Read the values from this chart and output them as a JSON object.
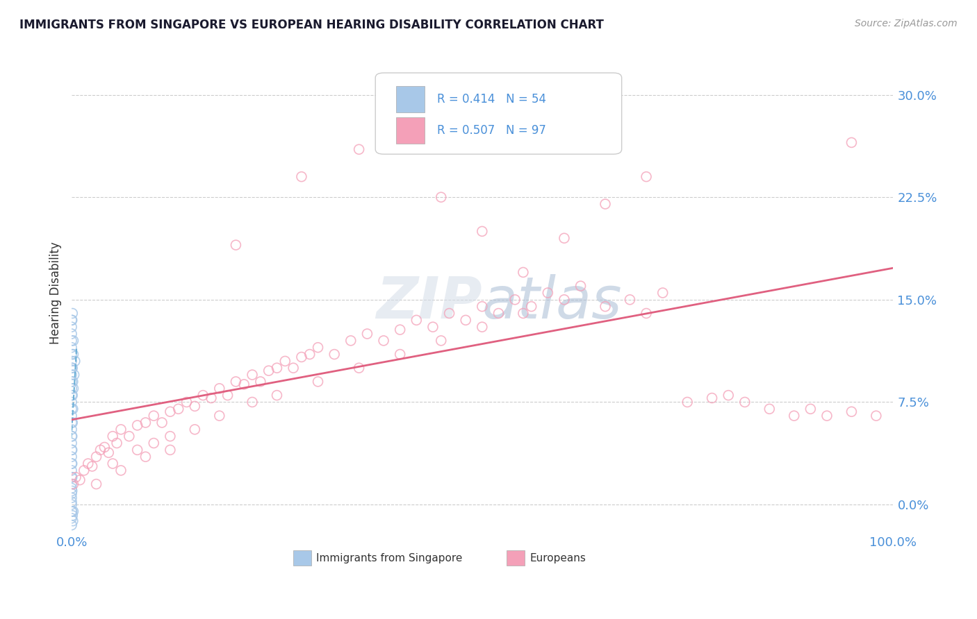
{
  "title": "IMMIGRANTS FROM SINGAPORE VS EUROPEAN HEARING DISABILITY CORRELATION CHART",
  "source": "Source: ZipAtlas.com",
  "ylabel": "Hearing Disability",
  "watermark": "ZIPatlas",
  "legend_blue_R": "0.414",
  "legend_blue_N": "54",
  "legend_pink_R": "0.507",
  "legend_pink_N": "97",
  "legend_label_blue": "Immigrants from Singapore",
  "legend_label_pink": "Europeans",
  "xlim": [
    0.0,
    100.0
  ],
  "ylim": [
    -2.0,
    33.0
  ],
  "yticks": [
    0.0,
    7.5,
    15.0,
    22.5,
    30.0
  ],
  "xticks": [
    0.0,
    100.0
  ],
  "blue_color": "#a8c8e8",
  "pink_color": "#f4a0b8",
  "title_color": "#1a1a2e",
  "axis_label_color": "#4a90d9",
  "blue_scatter": [
    [
      0.0,
      0.0
    ],
    [
      0.0,
      0.2
    ],
    [
      0.0,
      0.5
    ],
    [
      0.0,
      0.8
    ],
    [
      0.0,
      1.2
    ],
    [
      0.0,
      1.5
    ],
    [
      0.0,
      2.0
    ],
    [
      0.0,
      2.5
    ],
    [
      0.0,
      3.0
    ],
    [
      0.0,
      3.5
    ],
    [
      0.0,
      4.0
    ],
    [
      0.0,
      4.5
    ],
    [
      0.0,
      5.0
    ],
    [
      0.0,
      5.5
    ],
    [
      0.0,
      6.0
    ],
    [
      0.0,
      6.5
    ],
    [
      0.0,
      7.0
    ],
    [
      0.0,
      7.5
    ],
    [
      0.0,
      8.0
    ],
    [
      0.0,
      8.5
    ],
    [
      0.0,
      9.0
    ],
    [
      0.0,
      9.5
    ],
    [
      0.0,
      10.0
    ],
    [
      0.0,
      10.5
    ],
    [
      0.0,
      11.0
    ],
    [
      0.0,
      11.5
    ],
    [
      0.0,
      12.0
    ],
    [
      0.0,
      12.5
    ],
    [
      0.0,
      13.0
    ],
    [
      0.0,
      13.5
    ],
    [
      0.05,
      1.0
    ],
    [
      0.05,
      2.0
    ],
    [
      0.05,
      3.0
    ],
    [
      0.05,
      4.0
    ],
    [
      0.05,
      5.0
    ],
    [
      0.1,
      6.0
    ],
    [
      0.1,
      8.0
    ],
    [
      0.1,
      10.0
    ],
    [
      0.15,
      7.0
    ],
    [
      0.15,
      9.0
    ],
    [
      0.2,
      8.5
    ],
    [
      0.2,
      11.0
    ],
    [
      0.3,
      9.5
    ],
    [
      0.4,
      10.5
    ],
    [
      0.0,
      -0.5
    ],
    [
      0.0,
      -1.0
    ],
    [
      0.0,
      -1.5
    ],
    [
      0.05,
      -0.5
    ],
    [
      0.1,
      -0.8
    ],
    [
      0.15,
      -1.2
    ],
    [
      0.2,
      -0.5
    ],
    [
      0.1,
      14.0
    ],
    [
      0.05,
      13.5
    ],
    [
      0.2,
      12.0
    ]
  ],
  "pink_scatter": [
    [
      0.2,
      1.5
    ],
    [
      0.5,
      2.0
    ],
    [
      1.0,
      1.8
    ],
    [
      1.5,
      2.5
    ],
    [
      2.0,
      3.0
    ],
    [
      2.5,
      2.8
    ],
    [
      3.0,
      3.5
    ],
    [
      3.5,
      4.0
    ],
    [
      4.0,
      4.2
    ],
    [
      4.5,
      3.8
    ],
    [
      5.0,
      5.0
    ],
    [
      5.5,
      4.5
    ],
    [
      6.0,
      5.5
    ],
    [
      7.0,
      5.0
    ],
    [
      8.0,
      5.8
    ],
    [
      9.0,
      6.0
    ],
    [
      10.0,
      6.5
    ],
    [
      11.0,
      6.0
    ],
    [
      12.0,
      6.8
    ],
    [
      13.0,
      7.0
    ],
    [
      14.0,
      7.5
    ],
    [
      15.0,
      7.2
    ],
    [
      16.0,
      8.0
    ],
    [
      17.0,
      7.8
    ],
    [
      18.0,
      8.5
    ],
    [
      19.0,
      8.0
    ],
    [
      20.0,
      9.0
    ],
    [
      21.0,
      8.8
    ],
    [
      22.0,
      9.5
    ],
    [
      23.0,
      9.0
    ],
    [
      24.0,
      9.8
    ],
    [
      25.0,
      10.0
    ],
    [
      26.0,
      10.5
    ],
    [
      27.0,
      10.0
    ],
    [
      28.0,
      10.8
    ],
    [
      29.0,
      11.0
    ],
    [
      30.0,
      11.5
    ],
    [
      32.0,
      11.0
    ],
    [
      34.0,
      12.0
    ],
    [
      36.0,
      12.5
    ],
    [
      38.0,
      12.0
    ],
    [
      40.0,
      12.8
    ],
    [
      42.0,
      13.5
    ],
    [
      44.0,
      13.0
    ],
    [
      46.0,
      14.0
    ],
    [
      48.0,
      13.5
    ],
    [
      50.0,
      14.5
    ],
    [
      52.0,
      14.0
    ],
    [
      54.0,
      15.0
    ],
    [
      56.0,
      14.5
    ],
    [
      58.0,
      15.5
    ],
    [
      60.0,
      15.0
    ],
    [
      62.0,
      16.0
    ],
    [
      65.0,
      14.5
    ],
    [
      68.0,
      15.0
    ],
    [
      70.0,
      14.0
    ],
    [
      72.0,
      15.5
    ],
    [
      75.0,
      7.5
    ],
    [
      78.0,
      7.8
    ],
    [
      80.0,
      8.0
    ],
    [
      82.0,
      7.5
    ],
    [
      85.0,
      7.0
    ],
    [
      88.0,
      6.5
    ],
    [
      90.0,
      7.0
    ],
    [
      92.0,
      6.5
    ],
    [
      95.0,
      6.8
    ],
    [
      98.0,
      6.5
    ],
    [
      5.0,
      3.0
    ],
    [
      8.0,
      4.0
    ],
    [
      10.0,
      4.5
    ],
    [
      12.0,
      5.0
    ],
    [
      15.0,
      5.5
    ],
    [
      18.0,
      6.5
    ],
    [
      22.0,
      7.5
    ],
    [
      25.0,
      8.0
    ],
    [
      30.0,
      9.0
    ],
    [
      35.0,
      10.0
    ],
    [
      40.0,
      11.0
    ],
    [
      45.0,
      12.0
    ],
    [
      50.0,
      13.0
    ],
    [
      55.0,
      14.0
    ],
    [
      20.0,
      19.0
    ],
    [
      28.0,
      24.0
    ],
    [
      35.0,
      26.0
    ],
    [
      40.0,
      28.5
    ],
    [
      45.0,
      22.5
    ],
    [
      50.0,
      20.0
    ],
    [
      55.0,
      17.0
    ],
    [
      60.0,
      19.5
    ],
    [
      65.0,
      22.0
    ],
    [
      70.0,
      24.0
    ],
    [
      3.0,
      1.5
    ],
    [
      6.0,
      2.5
    ],
    [
      9.0,
      3.5
    ],
    [
      12.0,
      4.0
    ],
    [
      95.0,
      26.5
    ]
  ]
}
